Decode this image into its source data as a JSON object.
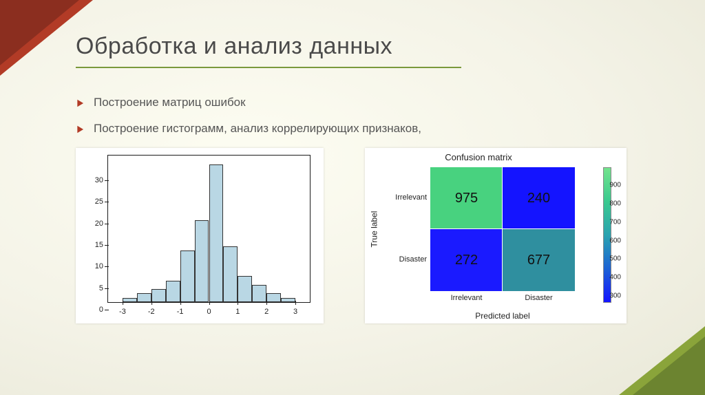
{
  "slide": {
    "title": "Обработка и анализ данных",
    "bullets": [
      "Построение матриц ошибок",
      "Построение гистограмм, анализ коррелирующих признаков,"
    ],
    "accent_color": "#b23b26",
    "rule_color": "#7a993c"
  },
  "histogram": {
    "type": "histogram",
    "background_color": "#ffffff",
    "axis_color": "#1a1a1a",
    "bar_fill": "#b9d7e4",
    "bar_stroke": "#333333",
    "bar_stroke_width": 1,
    "xlim": [
      -3.5,
      3.5
    ],
    "ylim": [
      0,
      34
    ],
    "yticks": [
      0,
      5,
      10,
      15,
      20,
      25,
      30
    ],
    "xticks": [
      -3,
      -2,
      -1,
      0,
      1,
      2,
      3
    ],
    "tick_fontsize": 11,
    "bins": [
      {
        "l": -3.0,
        "r": -2.5,
        "h": 1
      },
      {
        "l": -2.5,
        "r": -2.0,
        "h": 2
      },
      {
        "l": -2.0,
        "r": -1.5,
        "h": 3
      },
      {
        "l": -1.5,
        "r": -1.0,
        "h": 5
      },
      {
        "l": -1.0,
        "r": -0.5,
        "h": 12
      },
      {
        "l": -0.5,
        "r": 0.0,
        "h": 19
      },
      {
        "l": 0.0,
        "r": 0.5,
        "h": 32
      },
      {
        "l": 0.5,
        "r": 1.0,
        "h": 13
      },
      {
        "l": 1.0,
        "r": 1.5,
        "h": 6
      },
      {
        "l": 1.5,
        "r": 2.0,
        "h": 4
      },
      {
        "l": 2.0,
        "r": 2.5,
        "h": 2
      },
      {
        "l": 2.5,
        "r": 3.0,
        "h": 1
      }
    ]
  },
  "confusion_matrix": {
    "type": "heatmap",
    "title": "Confusion matrix",
    "xlabel": "Predicted label",
    "ylabel": "True label",
    "row_labels": [
      "Irrelevant",
      "Disaster"
    ],
    "col_labels": [
      "Irrelevant",
      "Disaster"
    ],
    "cells": [
      [
        {
          "value": 975,
          "color": "#48d27f"
        },
        {
          "value": 240,
          "color": "#1414ff"
        }
      ],
      [
        {
          "value": 272,
          "color": "#1a1aff"
        },
        {
          "value": 677,
          "color": "#2f8f9f"
        }
      ]
    ],
    "cell_text_color": "#111111",
    "label_fontsize": 11,
    "title_fontsize": 13,
    "colorbar": {
      "gradient": [
        "#1414ff",
        "#1c63d4",
        "#2aa3b0",
        "#3ac98f",
        "#73e38d"
      ],
      "vmin": 240,
      "vmax": 975,
      "ticks": [
        300,
        400,
        500,
        600,
        700,
        800,
        900
      ]
    }
  }
}
